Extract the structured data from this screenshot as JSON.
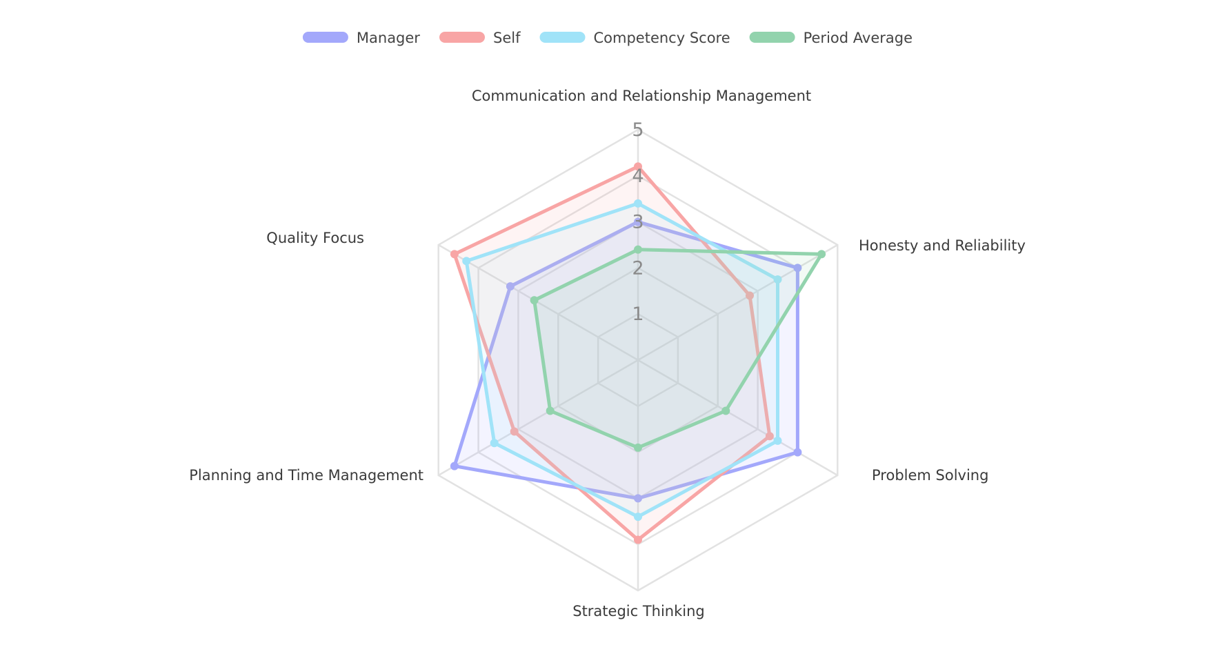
{
  "chart_data": {
    "type": "radar",
    "title": "",
    "axes": [
      "Communication and Relationship Management",
      "Honesty and Reliability",
      "Problem Solving",
      "Strategic Thinking",
      "Planning and Time Management",
      "Quality Focus"
    ],
    "r_ticks": [
      "1",
      "2",
      "3",
      "4",
      "5"
    ],
    "r_range": [
      0,
      5
    ],
    "legend_position": "top",
    "grid": true,
    "series": [
      {
        "name": "Manager",
        "color": "#a3a8fb",
        "values": [
          3.0,
          4.0,
          4.0,
          3.0,
          4.6,
          3.2
        ]
      },
      {
        "name": "Self",
        "color": "#f8a5a5",
        "values": [
          4.2,
          2.8,
          3.3,
          3.9,
          3.1,
          4.6
        ]
      },
      {
        "name": "Competency Score",
        "color": "#a0e3f8",
        "values": [
          3.4,
          3.5,
          3.5,
          3.4,
          3.6,
          4.3
        ]
      },
      {
        "name": "Period Average",
        "color": "#92d3ad",
        "values": [
          2.4,
          4.6,
          2.2,
          1.9,
          2.2,
          2.6
        ]
      }
    ]
  }
}
